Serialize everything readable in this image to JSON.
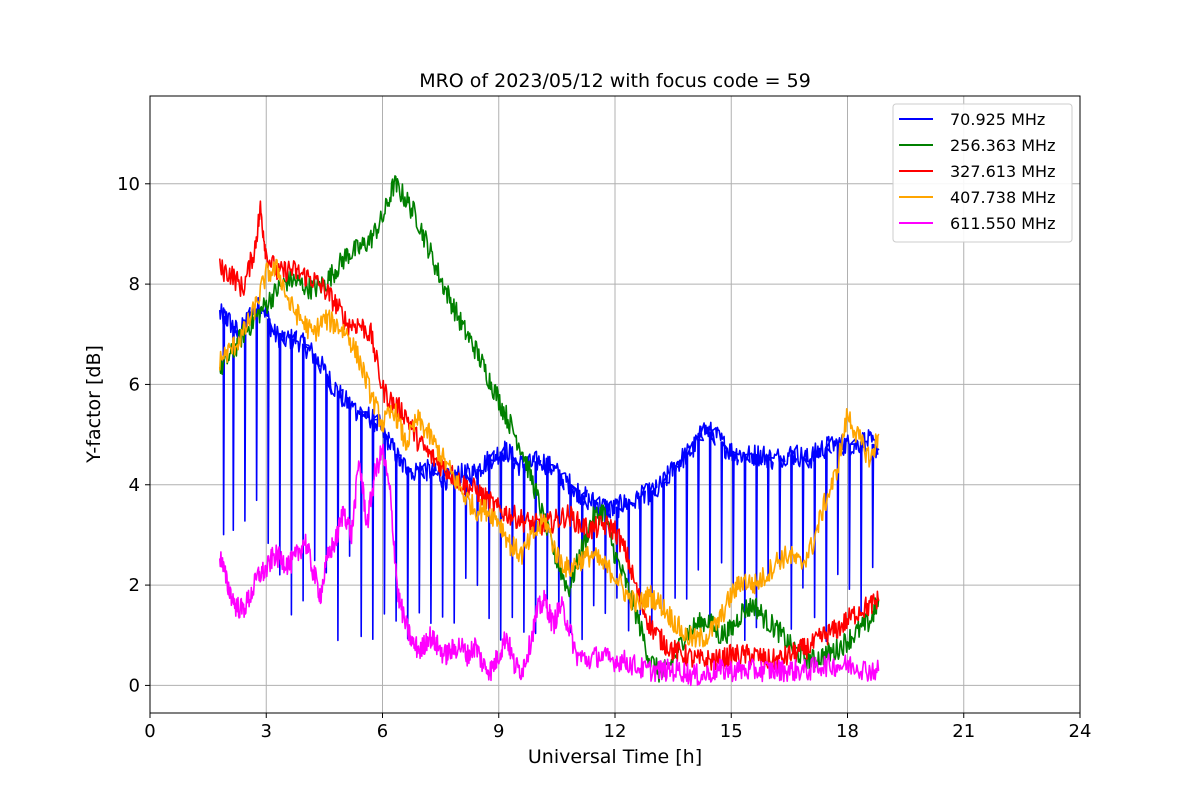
{
  "chart_data": {
    "type": "line",
    "title": "MRO of 2023/05/12 with focus code = 59",
    "xlabel": "Universal Time [h]",
    "ylabel": "Y-factor [dB]",
    "xlim": [
      0,
      24
    ],
    "ylim": [
      -0.55,
      11.75
    ],
    "xticks": [
      0,
      3,
      6,
      9,
      12,
      15,
      18,
      21,
      24
    ],
    "yticks": [
      0,
      2,
      4,
      6,
      8,
      10
    ],
    "grid": true,
    "legend_position": "top-right",
    "series": [
      {
        "name": "70.925 MHz",
        "color": "#0000ff",
        "periodic_dips": true,
        "x": [
          1.8,
          2.0,
          2.3,
          2.6,
          2.9,
          3.2,
          3.5,
          3.8,
          4.1,
          4.4,
          4.7,
          5.0,
          5.3,
          5.6,
          5.9,
          6.2,
          6.5,
          6.8,
          7.1,
          7.4,
          7.7,
          8.0,
          8.3,
          8.6,
          8.9,
          9.2,
          9.5,
          9.8,
          10.1,
          10.4,
          10.7,
          11.0,
          11.3,
          11.6,
          11.9,
          12.2,
          12.5,
          12.8,
          13.1,
          13.4,
          13.7,
          14.0,
          14.3,
          14.6,
          14.9,
          15.2,
          15.5,
          15.8,
          16.1,
          16.4,
          16.7,
          17.0,
          17.3,
          17.6,
          17.9,
          18.2,
          18.5,
          18.8
        ],
        "y": [
          7.4,
          7.3,
          7.0,
          7.4,
          7.6,
          7.0,
          6.9,
          6.9,
          6.7,
          6.4,
          6.0,
          5.7,
          5.5,
          5.4,
          5.2,
          4.8,
          4.4,
          4.3,
          4.3,
          4.2,
          4.1,
          4.2,
          4.2,
          4.4,
          4.6,
          4.7,
          4.4,
          4.4,
          4.5,
          4.3,
          4.1,
          3.9,
          3.7,
          3.6,
          3.5,
          3.6,
          3.7,
          3.8,
          3.9,
          4.2,
          4.5,
          4.7,
          5.1,
          5.0,
          4.7,
          4.6,
          4.6,
          4.6,
          4.5,
          4.6,
          4.6,
          4.5,
          4.7,
          4.8,
          4.8,
          4.8,
          4.9,
          4.7
        ]
      },
      {
        "name": "256.363 MHz",
        "color": "#008000",
        "x": [
          1.8,
          2.1,
          2.4,
          2.7,
          3.0,
          3.3,
          3.6,
          3.9,
          4.2,
          4.5,
          4.8,
          5.1,
          5.4,
          5.7,
          6.0,
          6.3,
          6.6,
          6.9,
          7.2,
          7.5,
          7.8,
          8.1,
          8.4,
          8.7,
          9.0,
          9.3,
          9.6,
          9.9,
          10.2,
          10.5,
          10.8,
          11.1,
          11.4,
          11.7,
          12.0,
          12.3,
          12.6,
          12.9,
          13.2,
          13.5,
          13.8,
          14.1,
          14.4,
          14.7,
          15.0,
          15.3,
          15.6,
          15.9,
          16.2,
          16.5,
          16.8,
          17.1,
          17.4,
          17.7,
          18.0,
          18.3,
          18.6,
          18.8
        ],
        "y": [
          6.3,
          6.6,
          7.0,
          7.3,
          7.6,
          7.9,
          8.1,
          8.0,
          7.9,
          8.0,
          8.3,
          8.6,
          8.7,
          8.9,
          9.3,
          10.0,
          9.7,
          9.3,
          8.7,
          8.1,
          7.6,
          7.1,
          6.7,
          6.2,
          5.7,
          5.2,
          4.7,
          4.0,
          3.2,
          2.5,
          1.9,
          2.6,
          3.3,
          3.5,
          2.6,
          2.0,
          1.3,
          0.5,
          0.2,
          0.5,
          1.0,
          1.2,
          1.3,
          1.0,
          1.1,
          1.5,
          1.6,
          1.3,
          1.1,
          0.8,
          0.6,
          0.5,
          0.6,
          0.7,
          0.9,
          1.1,
          1.3,
          1.7
        ]
      },
      {
        "name": "327.613 MHz",
        "color": "#ff0000",
        "x": [
          1.8,
          2.1,
          2.4,
          2.7,
          2.85,
          3.0,
          3.3,
          3.6,
          3.9,
          4.2,
          4.5,
          4.8,
          5.1,
          5.4,
          5.7,
          6.0,
          6.3,
          6.6,
          6.9,
          7.2,
          7.5,
          7.8,
          8.1,
          8.4,
          8.7,
          9.0,
          9.3,
          9.6,
          9.9,
          10.2,
          10.5,
          10.8,
          11.1,
          11.4,
          11.7,
          12.0,
          12.3,
          12.6,
          12.9,
          13.2,
          13.5,
          13.8,
          14.1,
          14.4,
          14.7,
          15.0,
          15.3,
          15.6,
          15.9,
          16.2,
          16.5,
          16.8,
          17.1,
          17.4,
          17.7,
          18.0,
          18.3,
          18.6,
          18.8
        ],
        "y": [
          8.3,
          8.2,
          7.9,
          8.7,
          9.5,
          8.6,
          8.2,
          8.3,
          8.2,
          8.1,
          7.9,
          7.6,
          7.2,
          7.2,
          7.0,
          5.9,
          5.6,
          5.4,
          4.9,
          4.6,
          4.4,
          4.2,
          4.0,
          3.9,
          3.7,
          3.5,
          3.4,
          3.3,
          3.2,
          3.2,
          3.3,
          3.4,
          3.2,
          3.1,
          3.2,
          3.1,
          2.6,
          1.8,
          1.2,
          0.9,
          0.7,
          0.6,
          0.5,
          0.5,
          0.5,
          0.6,
          0.6,
          0.6,
          0.5,
          0.5,
          0.6,
          0.7,
          0.8,
          1.0,
          1.1,
          1.3,
          1.5,
          1.6,
          1.7
        ]
      },
      {
        "name": "407.738 MHz",
        "color": "#ffa500",
        "x": [
          1.8,
          2.1,
          2.4,
          2.7,
          3.0,
          3.3,
          3.6,
          3.9,
          4.2,
          4.5,
          4.8,
          5.1,
          5.4,
          5.7,
          6.0,
          6.3,
          6.6,
          6.9,
          7.2,
          7.5,
          7.8,
          8.1,
          8.4,
          8.7,
          9.0,
          9.3,
          9.6,
          9.9,
          10.2,
          10.5,
          10.8,
          11.1,
          11.4,
          11.7,
          12.0,
          12.3,
          12.6,
          12.9,
          13.2,
          13.5,
          13.8,
          14.1,
          14.4,
          14.7,
          15.0,
          15.3,
          15.6,
          15.9,
          16.2,
          16.5,
          16.8,
          17.1,
          17.4,
          17.7,
          18.0,
          18.3,
          18.6,
          18.8
        ],
        "y": [
          6.5,
          6.7,
          7.0,
          7.5,
          8.2,
          8.3,
          7.6,
          7.3,
          7.0,
          7.3,
          7.2,
          7.0,
          6.5,
          5.8,
          5.2,
          5.5,
          4.8,
          5.3,
          5.0,
          4.6,
          4.2,
          3.8,
          3.5,
          3.5,
          3.3,
          2.8,
          2.6,
          3.0,
          3.3,
          2.6,
          2.3,
          2.5,
          2.6,
          2.4,
          2.2,
          1.8,
          1.6,
          1.8,
          1.6,
          1.3,
          1.0,
          0.9,
          1.0,
          1.3,
          1.8,
          2.1,
          2.0,
          2.2,
          2.5,
          2.6,
          2.4,
          2.8,
          3.6,
          4.2,
          5.4,
          4.9,
          4.5,
          5.0
        ]
      },
      {
        "name": "611.550 MHz",
        "color": "#ff00ff",
        "x": [
          1.8,
          2.0,
          2.2,
          2.4,
          2.6,
          2.8,
          3.0,
          3.2,
          3.4,
          3.6,
          3.8,
          4.0,
          4.2,
          4.4,
          4.6,
          4.8,
          5.0,
          5.2,
          5.4,
          5.6,
          5.8,
          6.0,
          6.2,
          6.4,
          6.6,
          6.8,
          7.0,
          7.2,
          7.4,
          7.6,
          7.8,
          8.0,
          8.2,
          8.4,
          8.6,
          8.8,
          9.0,
          9.2,
          9.4,
          9.6,
          9.8,
          10.0,
          10.2,
          10.4,
          10.6,
          10.8,
          11.0,
          11.3,
          11.6,
          11.9,
          12.2,
          12.5,
          12.8,
          13.1,
          13.4,
          13.7,
          14.0,
          14.3,
          14.6,
          14.9,
          15.2,
          15.5,
          15.8,
          16.1,
          16.4,
          16.7,
          17.0,
          17.3,
          17.6,
          17.9,
          18.2,
          18.5,
          18.8
        ],
        "y": [
          2.6,
          2.0,
          1.6,
          1.5,
          1.8,
          2.2,
          2.3,
          2.6,
          2.5,
          2.4,
          2.6,
          2.9,
          2.3,
          1.8,
          2.6,
          2.9,
          3.5,
          3.0,
          4.5,
          3.2,
          4.2,
          4.7,
          3.8,
          1.8,
          1.2,
          0.8,
          0.7,
          1.0,
          0.8,
          0.6,
          0.7,
          0.8,
          0.6,
          0.8,
          0.4,
          0.3,
          0.6,
          1.0,
          0.4,
          0.3,
          0.8,
          1.5,
          1.7,
          1.2,
          1.6,
          1.2,
          0.6,
          0.5,
          0.6,
          0.5,
          0.5,
          0.4,
          0.3,
          0.3,
          0.3,
          0.3,
          0.2,
          0.2,
          0.3,
          0.3,
          0.3,
          0.3,
          0.3,
          0.3,
          0.3,
          0.3,
          0.3,
          0.4,
          0.4,
          0.4,
          0.4,
          0.3,
          0.3
        ]
      }
    ]
  }
}
